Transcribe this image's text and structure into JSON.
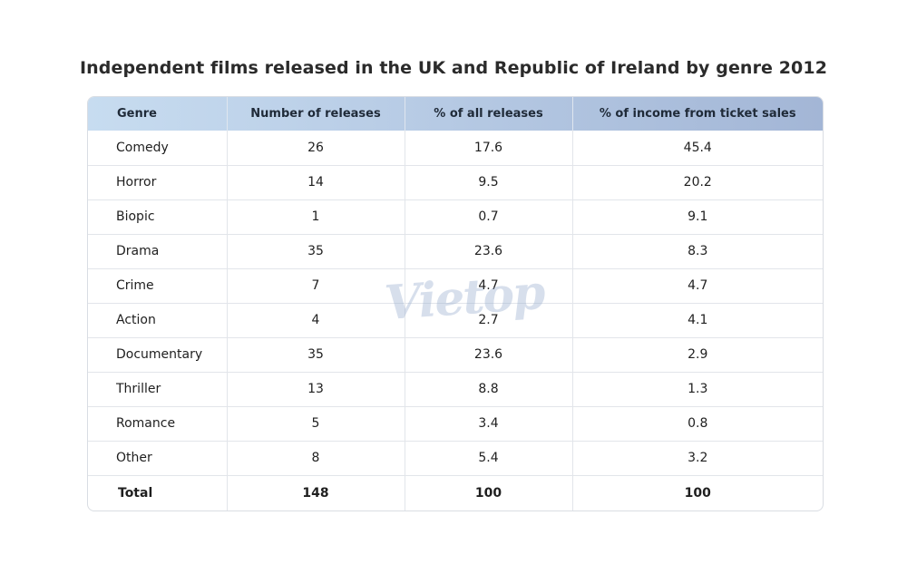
{
  "chart_data": {
    "type": "table",
    "title": "Independent films released in the UK and Republic of Ireland by genre 2012",
    "columns": [
      "Genre",
      "Number of releases",
      "% of all releases",
      "% of income from ticket sales"
    ],
    "rows": [
      [
        "Comedy",
        "26",
        "17.6",
        "45.4"
      ],
      [
        "Horror",
        "14",
        "9.5",
        "20.2"
      ],
      [
        "Biopic",
        "1",
        "0.7",
        "9.1"
      ],
      [
        "Drama",
        "35",
        "23.6",
        "8.3"
      ],
      [
        "Crime",
        "7",
        "4.7",
        "4.7"
      ],
      [
        "Action",
        "4",
        "2.7",
        "4.1"
      ],
      [
        "Documentary",
        "35",
        "23.6",
        "2.9"
      ],
      [
        "Thriller",
        "13",
        "8.8",
        "1.3"
      ],
      [
        "Romance",
        "5",
        "3.4",
        "0.8"
      ],
      [
        "Other",
        "8",
        "5.4",
        "3.2"
      ]
    ],
    "total": [
      "Total",
      "148",
      "100",
      "100"
    ],
    "header_colors": [
      "#c7dcf0",
      "#a3b6d6"
    ]
  },
  "watermark": "Vietop"
}
